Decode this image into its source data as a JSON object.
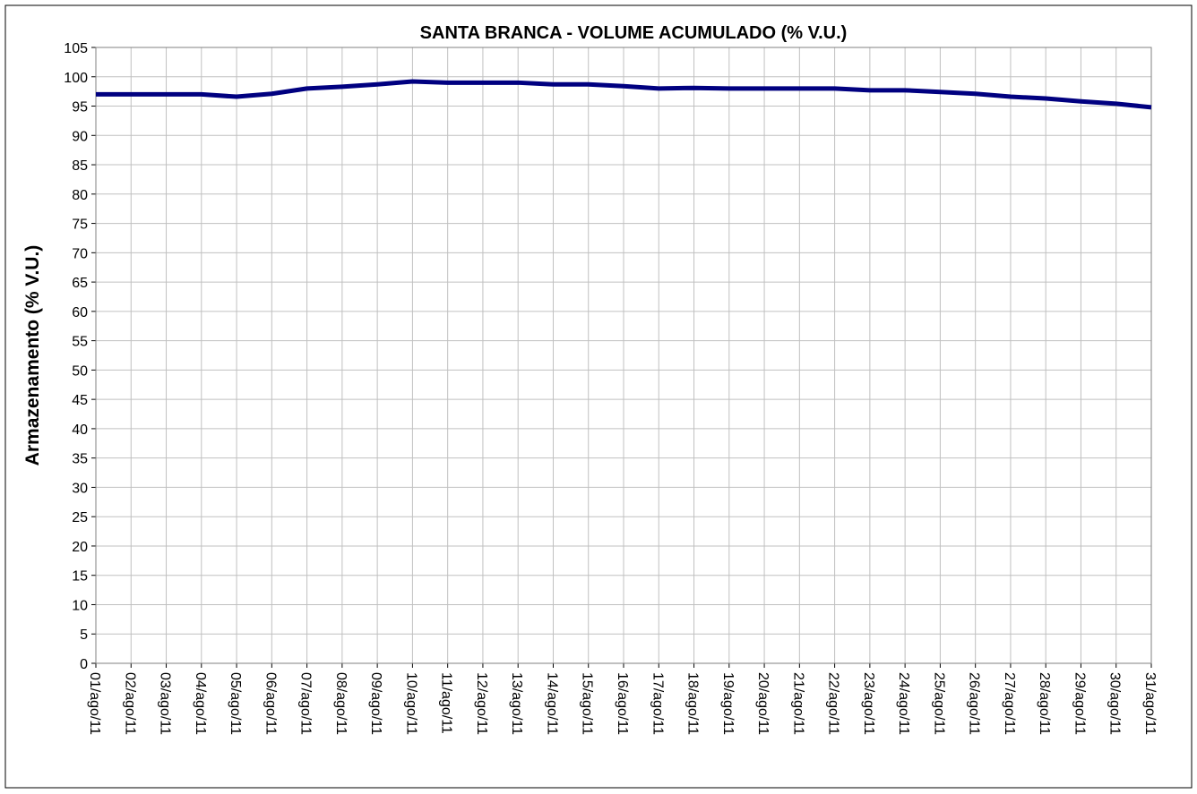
{
  "chart_data": {
    "type": "line",
    "title": "SANTA BRANCA - VOLUME ACUMULADO (% V.U.)",
    "y_label": "Armazenamento (% V.U.)",
    "categories": [
      "01/ago/11",
      "02/ago/11",
      "03/ago/11",
      "04/ago/11",
      "05/ago/11",
      "06/ago/11",
      "07/ago/11",
      "08/ago/11",
      "09/ago/11",
      "10/ago/11",
      "11/ago/11",
      "12/ago/11",
      "13/ago/11",
      "14/ago/11",
      "15/ago/11",
      "16/ago/11",
      "17/ago/11",
      "18/ago/11",
      "19/ago/11",
      "20/ago/11",
      "21/ago/11",
      "22/ago/11",
      "23/ago/11",
      "24/ago/11",
      "25/ago/11",
      "26/ago/11",
      "27/ago/11",
      "28/ago/11",
      "29/ago/11",
      "30/ago/11",
      "31/ago/11"
    ],
    "series": [
      {
        "color": "#000080",
        "values": [
          97,
          97,
          97,
          97,
          96.6,
          97.1,
          98,
          98.3,
          98.7,
          99.2,
          99,
          99,
          99,
          98.7,
          98.7,
          98.4,
          98,
          98.1,
          98,
          98,
          98,
          98,
          97.7,
          97.7,
          97.4,
          97.1,
          96.6,
          96.3,
          95.8,
          95.4,
          94.8
        ]
      }
    ],
    "ylim": [
      0,
      105
    ],
    "yticks": [
      0,
      5,
      10,
      15,
      20,
      25,
      30,
      35,
      40,
      45,
      50,
      55,
      60,
      65,
      70,
      75,
      80,
      85,
      90,
      95,
      100,
      105
    ],
    "grid": true
  }
}
